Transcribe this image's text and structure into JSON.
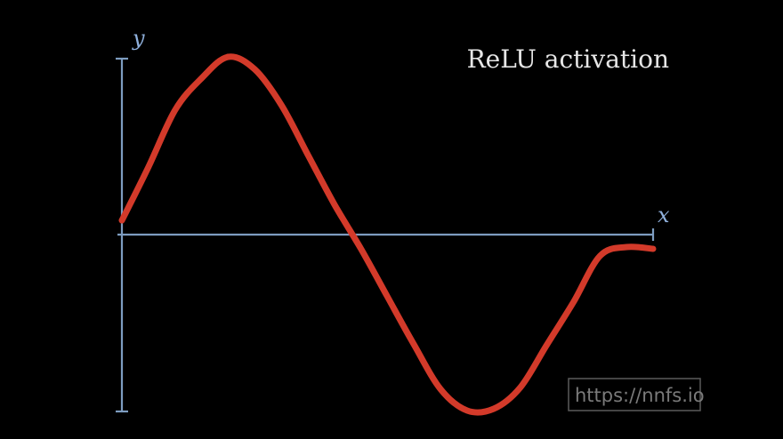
{
  "chart_data": {
    "type": "line",
    "title": "ReLU activation",
    "xlabel": "x",
    "ylabel": "y",
    "xlim": [
      0,
      1
    ],
    "ylim": [
      -1,
      1
    ],
    "grid": false,
    "legend": "none",
    "colors": {
      "axis": "#7d9cc0",
      "series": "#d33a2a",
      "title": "#e6e6e6"
    },
    "series": [
      {
        "x": [
          0,
          0.05,
          0.1,
          0.15,
          0.2,
          0.25,
          0.3,
          0.35,
          0.4,
          0.45,
          0.5,
          0.55,
          0.6,
          0.65,
          0.7,
          0.75,
          0.8,
          0.85,
          0.9,
          0.95,
          1.0
        ],
        "values": [
          0.08,
          0.38,
          0.7,
          0.88,
          1.0,
          0.93,
          0.73,
          0.45,
          0.17,
          -0.08,
          -0.35,
          -0.62,
          -0.87,
          -0.99,
          -0.98,
          -0.86,
          -0.62,
          -0.38,
          -0.12,
          -0.07,
          -0.08
        ]
      }
    ]
  },
  "watermark": "https://nnfs.io"
}
